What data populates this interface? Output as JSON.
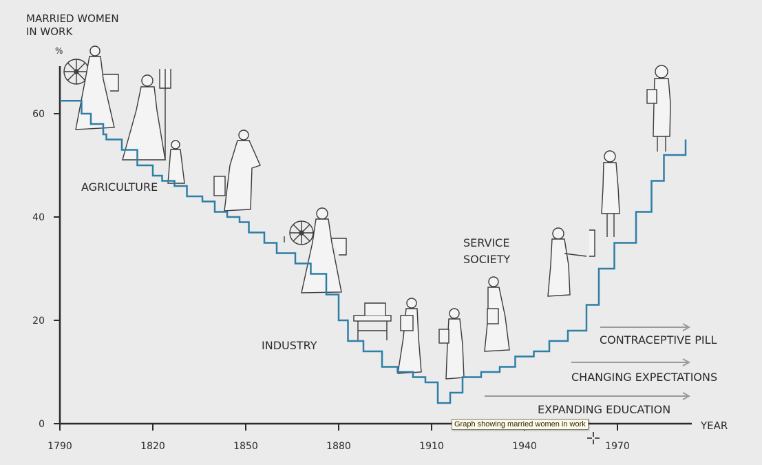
{
  "chart_data": {
    "type": "line",
    "subtype": "step",
    "title": "",
    "ylabel": "MARRIED WOMEN\nIN WORK",
    "ylabel_unit": "%",
    "xlabel": "YEAR",
    "x_ticks": [
      1790,
      1820,
      1850,
      1880,
      1910,
      1940,
      1970
    ],
    "y_ticks": [
      0,
      20,
      40,
      60
    ],
    "xlim": [
      1790,
      2000
    ],
    "ylim": [
      0,
      70
    ],
    "series": [
      {
        "name": "Married women in work",
        "color": "#2e7ea6",
        "x": [
          1790,
          1794,
          1797,
          1800,
          1804,
          1805,
          1810,
          1815,
          1820,
          1823,
          1827,
          1831,
          1836,
          1840,
          1844,
          1848,
          1851,
          1856,
          1860,
          1866,
          1871,
          1876,
          1880,
          1883,
          1888,
          1894,
          1899,
          1904,
          1908,
          1912,
          1916,
          1920,
          1926,
          1932,
          1937,
          1943,
          1948,
          1954,
          1960,
          1964,
          1969,
          1976,
          1981,
          1985,
          1992
        ],
        "y": [
          62.5,
          62.5,
          60,
          58,
          56,
          55,
          53,
          50,
          48,
          47,
          46,
          44,
          43,
          41,
          40,
          39,
          37,
          35,
          33,
          31,
          29,
          25,
          20,
          16,
          14,
          11,
          10,
          9,
          8,
          4,
          6,
          9,
          10,
          11,
          13,
          14,
          16,
          18,
          23,
          30,
          35,
          41,
          47,
          52,
          55
        ]
      }
    ],
    "annotations": [
      "AGRICULTURE",
      "INDUSTRY",
      "SERVICE\nSOCIETY"
    ],
    "trends": [
      "CONTRACEPTIVE PILL",
      "CHANGING EXPECTATIONS",
      "EXPANDING EDUCATION"
    ]
  },
  "tooltip": "Graph showing married women in work",
  "colors": {
    "line": "#2e7ea6",
    "axis": "#2a2a2a",
    "figure": "#3a3a3a",
    "arrow": "#9a9a9a"
  }
}
